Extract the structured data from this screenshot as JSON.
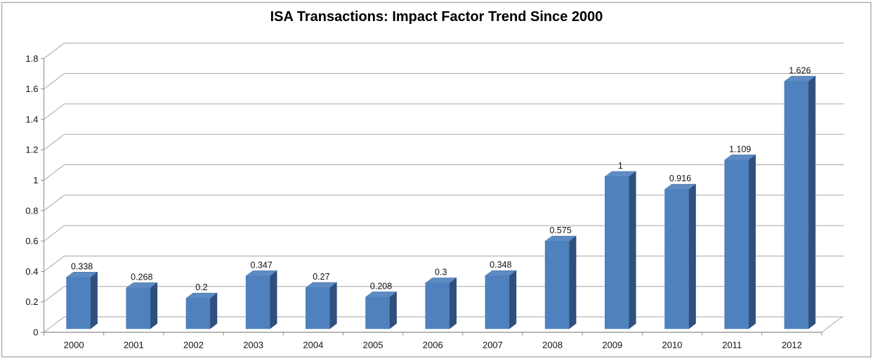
{
  "chart_data": {
    "type": "bar",
    "style": "3d-clustered-column",
    "title": "ISA Transactions: Impact Factor Trend Since 2000",
    "xlabel": "",
    "ylabel": "",
    "categories": [
      "2000",
      "2001",
      "2002",
      "2003",
      "2004",
      "2005",
      "2006",
      "2007",
      "2008",
      "2009",
      "2010",
      "2011",
      "2012"
    ],
    "values": [
      0.338,
      0.268,
      0.2,
      0.347,
      0.27,
      0.208,
      0.3,
      0.348,
      0.575,
      1,
      0.916,
      1.109,
      1.626
    ],
    "data_labels": [
      "0.338",
      "0.268",
      "0.2",
      "0.347",
      "0.27",
      "0.208",
      "0.3",
      "0.348",
      "0.575",
      "1",
      "0.916",
      "1.109",
      "1.626"
    ],
    "series_name": "Impact Factor",
    "ylim": [
      0,
      1.8
    ],
    "ytick_step": 0.2,
    "ytick_labels": [
      "0",
      "0.2",
      "0.4",
      "0.6",
      "0.8",
      "1",
      "1.2",
      "1.4",
      "1.6",
      "1.8"
    ],
    "grid": true,
    "legend": "none",
    "colors": {
      "bar_front": "#4E81BD",
      "bar_top": "#5E8BC4",
      "bar_top_edge": "#44719F",
      "bar_side": "#2F4F7D",
      "gridline": "#A6A6A6",
      "axis": "#8C8C8C",
      "border": "#ABABAB",
      "text": "#111111",
      "background": "#FFFFFF"
    }
  }
}
